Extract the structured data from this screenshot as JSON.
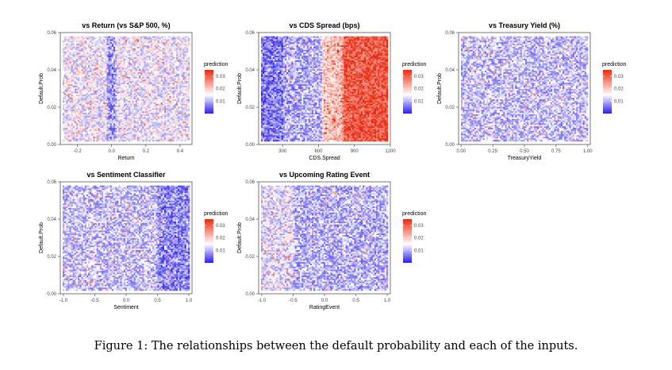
{
  "caption": "Figure 1: The relationships between the default probability and each of the inputs.",
  "colors": {
    "low": "#2a1ee8",
    "mid": "#ffffff",
    "high": "#e82a10"
  },
  "chart_data": [
    {
      "type": "heatmap",
      "title": "vs Return (vs S&P 500, %)",
      "xlabel": "Return",
      "ylabel": "Default.Prob",
      "xlim": [
        -0.3,
        0.47
      ],
      "ylim": [
        0,
        0.06
      ],
      "x_ticks": [
        "-0.2",
        "0.0",
        "0.2",
        "0.4"
      ],
      "x_tick_values": [
        -0.2,
        0.0,
        0.2,
        0.4
      ],
      "y_ticks": [
        "0.00",
        "0.02",
        "0.04",
        "0.06"
      ],
      "y_tick_values": [
        0.0,
        0.02,
        0.04,
        0.06
      ],
      "legend_title": "prediction",
      "legend_ticks": [
        "0.01",
        "0.02",
        "0.03"
      ],
      "legend_range": [
        0.0,
        0.035
      ],
      "legend_position": "right",
      "grid": false,
      "profile_x": [
        -0.3,
        -0.03,
        -0.02,
        0.02,
        0.03,
        0.47
      ],
      "profile_value": [
        0.014,
        0.014,
        0.008,
        0.008,
        0.014,
        0.014
      ]
    },
    {
      "type": "heatmap",
      "title": "vs CDS Spread (bps)",
      "xlabel": "CDS.Spread",
      "ylabel": "Default.Prob",
      "xlim": [
        100,
        1200
      ],
      "ylim": [
        0,
        0.06
      ],
      "x_ticks": [
        "300",
        "600",
        "900",
        "1200"
      ],
      "x_tick_values": [
        300,
        600,
        900,
        1200
      ],
      "y_ticks": [
        "0.00",
        "0.02",
        "0.04",
        "0.06"
      ],
      "y_tick_values": [
        0.0,
        0.02,
        0.04,
        0.06
      ],
      "legend_title": "prediction",
      "legend_ticks": [
        "0.01",
        "0.02",
        "0.03"
      ],
      "legend_range": [
        0.0,
        0.035
      ],
      "legend_position": "right",
      "grid": false,
      "profile_x": [
        100,
        300,
        310,
        630,
        640,
        800,
        810,
        1200
      ],
      "profile_value": [
        0.006,
        0.006,
        0.009,
        0.01,
        0.02,
        0.022,
        0.03,
        0.031
      ]
    },
    {
      "type": "heatmap",
      "title": "vs Treasury Yield (%)",
      "xlabel": "TreasuryYield",
      "ylabel": "Default.Prob",
      "xlim": [
        -0.02,
        1.02
      ],
      "ylim": [
        0,
        0.06
      ],
      "x_ticks": [
        "0.00",
        "0.25",
        "0.50",
        "0.75",
        "1.00"
      ],
      "x_tick_values": [
        0.0,
        0.25,
        0.5,
        0.75,
        1.0
      ],
      "y_ticks": [
        "0.00",
        "0.02",
        "0.04",
        "0.06"
      ],
      "y_tick_values": [
        0.0,
        0.02,
        0.04,
        0.06
      ],
      "legend_title": "prediction",
      "legend_ticks": [
        "0.01",
        "0.02",
        "0.03"
      ],
      "legend_range": [
        0.0,
        0.035
      ],
      "legend_position": "right",
      "grid": false,
      "profile_x": [
        -0.02,
        1.02
      ],
      "profile_value": [
        0.011,
        0.011
      ]
    },
    {
      "type": "heatmap",
      "title": "vs Sentiment Classifier",
      "xlabel": "Sentiment",
      "ylabel": "Default.Prob",
      "xlim": [
        -1.05,
        1.05
      ],
      "ylim": [
        0,
        0.06
      ],
      "x_ticks": [
        "-1.0",
        "-0.5",
        "0.0",
        "0.5",
        "1.0"
      ],
      "x_tick_values": [
        -1.0,
        -0.5,
        0.0,
        0.5,
        1.0
      ],
      "y_ticks": [
        "0.00",
        "0.02",
        "0.04",
        "0.06"
      ],
      "y_tick_values": [
        0.0,
        0.02,
        0.04,
        0.06
      ],
      "legend_title": "prediction",
      "legend_ticks": [
        "0.01",
        "0.02",
        "0.03"
      ],
      "legend_range": [
        0.0,
        0.035
      ],
      "legend_position": "right",
      "grid": false,
      "profile_x": [
        -1.05,
        0.5,
        0.52,
        1.05
      ],
      "profile_value": [
        0.011,
        0.011,
        0.007,
        0.007
      ]
    },
    {
      "type": "heatmap",
      "title": "vs Upcoming Rating Event",
      "xlabel": "RatingEvent",
      "ylabel": "Default.Prob",
      "xlim": [
        -1.05,
        1.05
      ],
      "ylim": [
        0,
        0.06
      ],
      "x_ticks": [
        "-1.0",
        "-0.5",
        "0.0",
        "0.5",
        "1.0"
      ],
      "x_tick_values": [
        -1.0,
        -0.5,
        0.0,
        0.5,
        1.0
      ],
      "y_ticks": [
        "0.00",
        "0.02",
        "0.04",
        "0.06"
      ],
      "y_tick_values": [
        0.0,
        0.02,
        0.04,
        0.06
      ],
      "legend_title": "prediction",
      "legend_ticks": [
        "0.01",
        "0.02",
        "0.03"
      ],
      "legend_range": [
        0.0,
        0.035
      ],
      "legend_position": "right",
      "grid": false,
      "profile_x": [
        -1.05,
        -0.5,
        -0.48,
        1.05
      ],
      "profile_value": [
        0.013,
        0.013,
        0.01,
        0.01
      ]
    }
  ]
}
